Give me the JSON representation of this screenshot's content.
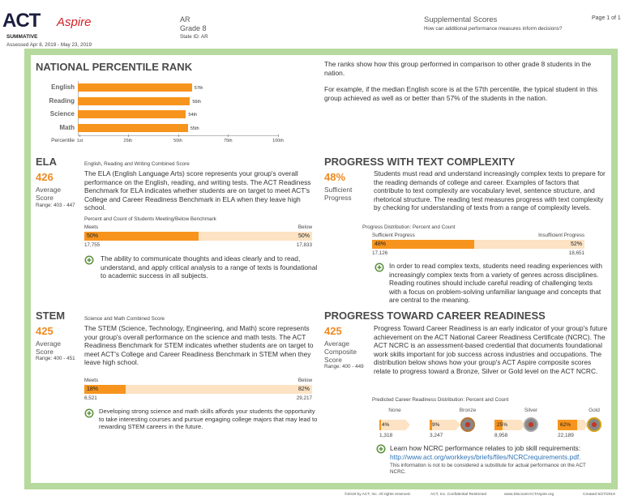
{
  "header": {
    "logo": "ACT",
    "product": "Aspire",
    "test": "SUMMATIVE",
    "assessed": "Assessed Apr 8, 2019 - May 23, 2019",
    "state": "AR",
    "grade": "Grade 8",
    "state_id": "State ID: AR",
    "section": "Supplemental Scores",
    "question": "How can additional performance measures inform decisions?",
    "page": "Page 1 of 1"
  },
  "percentile": {
    "title": "NATIONAL PERCENTILE RANK",
    "axis_label": "Percentile",
    "ticks": [
      {
        "value": 1,
        "label": "1st"
      },
      {
        "value": 25,
        "label": "25th"
      },
      {
        "value": 50,
        "label": "50th"
      },
      {
        "value": 75,
        "label": "75th"
      },
      {
        "value": 100,
        "label": "100th"
      }
    ],
    "rows": [
      {
        "subject": "English",
        "value": 57,
        "value_label": "57th"
      },
      {
        "subject": "Reading",
        "value": 56,
        "value_label": "56th"
      },
      {
        "subject": "Science",
        "value": 54,
        "value_label": "54th"
      },
      {
        "subject": "Math",
        "value": 55,
        "value_label": "55th"
      }
    ],
    "description": [
      "The ranks show how this group performed in comparison to other grade 8 students in the nation.",
      "For example, if the median English score is at the 57th percentile, the typical student in this group achieved as well as or better than 57% of the students in the nation."
    ]
  },
  "ela": {
    "title": "ELA",
    "subtitle": "English, Reading and Writing Combined Score",
    "score": 426,
    "score_label": "Average Score",
    "range": "Range: 403 - 447",
    "text": "The ELA (English Language Arts) score represents your group's overall performance on the English, reading, and writing tests. The ACT Readiness Benchmark for ELA indicates whether students are on target to meet ACT's College and Career Readiness Benchmark in ELA when they leave high school.",
    "benchmark": {
      "title": "Percent and Count of Students Meeting/Below Benchmark",
      "labels": [
        "Meets",
        "Below"
      ],
      "values": [
        50,
        50
      ],
      "value_labels": [
        "50%",
        "50%"
      ],
      "counts": [
        "17,755",
        "17,833"
      ]
    },
    "note": "The ability to communicate thoughts and ideas clearly and to read, understand, and apply critical analysis to a range of texts is foundational to academic success in all subjects."
  },
  "text_complexity": {
    "title": "PROGRESS WITH TEXT COMPLEXITY",
    "score": "48%",
    "score_label": "Sufficient Progress",
    "text": "Students must read and understand increasingly complex texts to prepare for the reading demands of college and career. Examples of factors that contribute to text complexity are vocabulary level, sentence structure, and rhetorical structure. The reading test measures progress with text complexity by checking for understanding of texts from a range of complexity levels.",
    "benchmark": {
      "title": "Progress Distribution: Percent and Count",
      "labels": [
        "Sufficient Progress",
        "Insufficient Progress"
      ],
      "values": [
        48,
        52
      ],
      "value_labels": [
        "48%",
        "52%"
      ],
      "counts": [
        "17,126",
        "18,651"
      ]
    },
    "note": "In order to read complex texts, students need reading experiences with increasingly complex texts from a variety of genres across disciplines. Reading routines should include careful reading of challenging texts with a focus on problem-solving unfamiliar language and concepts that are central to the meaning."
  },
  "stem": {
    "title": "STEM",
    "subtitle": "Science and Math Combined Score",
    "score": 425,
    "score_label": "Average Score",
    "range": "Range: 400 - 451",
    "text": "The STEM (Science, Technology, Engineering, and Math) score represents your group's overall performance on the science and math tests. The ACT Readiness Benchmark for STEM indicates whether students are on target to meet ACT's College and Career Readiness Benchmark in STEM when they leave high school.",
    "benchmark": {
      "title": "",
      "labels": [
        "Meets",
        "Below"
      ],
      "values": [
        18,
        82
      ],
      "value_labels": [
        "18%",
        "82%"
      ],
      "counts": [
        "6,521",
        "29,217"
      ]
    },
    "note": "Developing strong science and math skills affords your students the opportunity to take interesting courses and pursue engaging college majors that may lead to rewarding STEM careers in the future."
  },
  "career": {
    "title": "PROGRESS TOWARD CAREER READINESS",
    "score": 425,
    "score_label": "Average Composite Score",
    "range": "Range: 400 - 449",
    "text": "Progress Toward Career Readiness is an early indicator of your group's future achievement on the ACT National Career Readiness Certificate (NCRC). The ACT NCRC is an assessment-based credential that documents foundational work skills important for job success across industries and occupations. The distribution below shows how your group's ACT Aspire composite scores relate to progress toward a Bronze, Silver or Gold level on the ACT NCRC.",
    "distribution_title": "Predicted Career Readiness Distribution: Percent and Count",
    "levels": [
      {
        "name": "None",
        "value": 4,
        "value_label": "4%",
        "count": "1,318"
      },
      {
        "name": "Bronze",
        "value": 9,
        "value_label": "9%",
        "count": "3,247"
      },
      {
        "name": "Silver",
        "value": 25,
        "value_label": "25%",
        "count": "8,958"
      },
      {
        "name": "Gold",
        "value": 62,
        "value_label": "62%",
        "count": "22,189"
      }
    ],
    "note": "Learn how NCRC performance relates to job skill requirements:",
    "link": "http://www.act.org/workkeys/briefs/files/NCRCrequirements.pdf.",
    "disclaimer": "This information is not to be considered a substitute for actual performance on the ACT NCRC."
  },
  "footer": {
    "copyright": "©2019 by ACT, Inc. All rights reserved.",
    "confidential": "ACT, Inc. Confidential Restricted",
    "website": "www.DiscoverACTAspire.org",
    "created": "Created 6/27/2019"
  }
}
